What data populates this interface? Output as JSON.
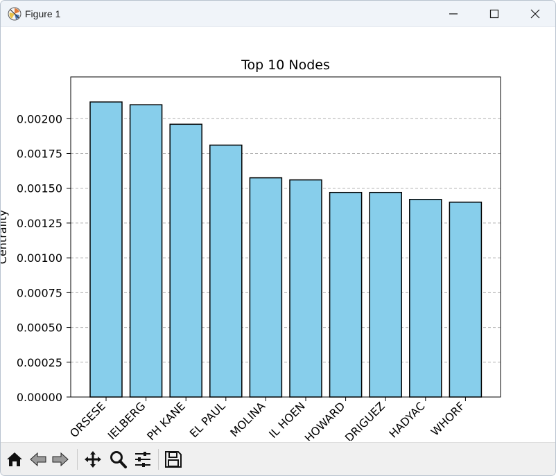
{
  "window": {
    "title": "Figure 1"
  },
  "toolbar": {
    "buttons": [
      "home-icon",
      "back-arrow-icon",
      "forward-arrow-icon",
      "pan-icon",
      "zoom-icon",
      "configure-subplots-icon",
      "save-icon"
    ]
  },
  "colors": {
    "bar_fill": "#87ceeb",
    "bar_edge": "#000000",
    "grid": "#b0b0b0"
  },
  "chart_data": {
    "type": "bar",
    "title": "Top 10 Nodes",
    "xlabel": "",
    "ylabel": "Centrality",
    "categories": [
      "ORSESE",
      "IELBERG",
      "PH KANE",
      "EL PAUL",
      "MOLINA",
      "IL HOEN",
      "HOWARD",
      "DRIGUEZ",
      "HADYAC",
      "WHORF"
    ],
    "values": [
      0.00212,
      0.0021,
      0.00196,
      0.00181,
      0.001575,
      0.00156,
      0.00147,
      0.00147,
      0.00142,
      0.0014
    ],
    "ylim": [
      0,
      0.0023
    ],
    "yticks": [
      0,
      0.00025,
      0.0005,
      0.00075,
      0.001,
      0.00125,
      0.0015,
      0.00175,
      0.002
    ],
    "ytick_labels": [
      "0.00000",
      "0.00025",
      "0.00050",
      "0.00075",
      "0.00100",
      "0.00125",
      "0.00150",
      "0.00175",
      "0.00200"
    ],
    "grid": {
      "y": true,
      "style": "dashed"
    },
    "legend": false
  }
}
